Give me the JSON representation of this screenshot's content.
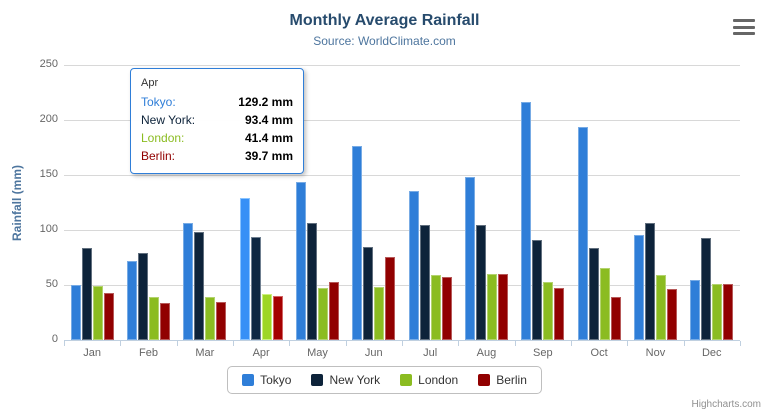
{
  "header": {
    "title": "Monthly Average Rainfall",
    "subtitle": "Source: WorldClimate.com"
  },
  "menu_icon": "hamburger-icon",
  "credit": "Highcharts.com",
  "chart_data": {
    "type": "bar",
    "title": "Monthly Average Rainfall",
    "subtitle": "Source: WorldClimate.com",
    "xlabel": "",
    "ylabel": "Rainfall (mm)",
    "ylim": [
      0,
      250
    ],
    "yticks": [
      0,
      50,
      100,
      150,
      200,
      250
    ],
    "grid": true,
    "legend_position": "bottom",
    "hover_category": "Apr",
    "categories": [
      "Jan",
      "Feb",
      "Mar",
      "Apr",
      "May",
      "Jun",
      "Jul",
      "Aug",
      "Sep",
      "Oct",
      "Nov",
      "Dec"
    ],
    "series": [
      {
        "name": "Tokyo",
        "color": "#2f7ed8",
        "values": [
          49.9,
          71.5,
          106.4,
          129.2,
          144.0,
          176.0,
          135.6,
          148.5,
          216.4,
          194.1,
          95.6,
          54.4
        ]
      },
      {
        "name": "New York",
        "color": "#0d233a",
        "values": [
          83.6,
          78.8,
          98.5,
          93.4,
          106.0,
          84.5,
          105.0,
          104.3,
          91.2,
          83.5,
          106.6,
          92.3
        ]
      },
      {
        "name": "London",
        "color": "#8bbc21",
        "values": [
          48.9,
          38.8,
          39.3,
          41.4,
          47.0,
          48.3,
          59.0,
          59.6,
          52.4,
          65.2,
          59.3,
          51.2
        ]
      },
      {
        "name": "Berlin",
        "color": "#910000",
        "values": [
          42.4,
          33.2,
          34.5,
          39.7,
          52.6,
          75.5,
          57.4,
          60.4,
          47.6,
          39.1,
          46.8,
          51.1
        ]
      }
    ]
  },
  "tooltip": {
    "header": "Apr",
    "rows": [
      {
        "label": "Tokyo:",
        "value": "129.2 mm",
        "color": "#2f7ed8"
      },
      {
        "label": "New York:",
        "value": "93.4 mm",
        "color": "#0d233a"
      },
      {
        "label": "London:",
        "value": "41.4 mm",
        "color": "#8bbc21"
      },
      {
        "label": "Berlin:",
        "value": "39.7 mm",
        "color": "#910000"
      }
    ]
  }
}
